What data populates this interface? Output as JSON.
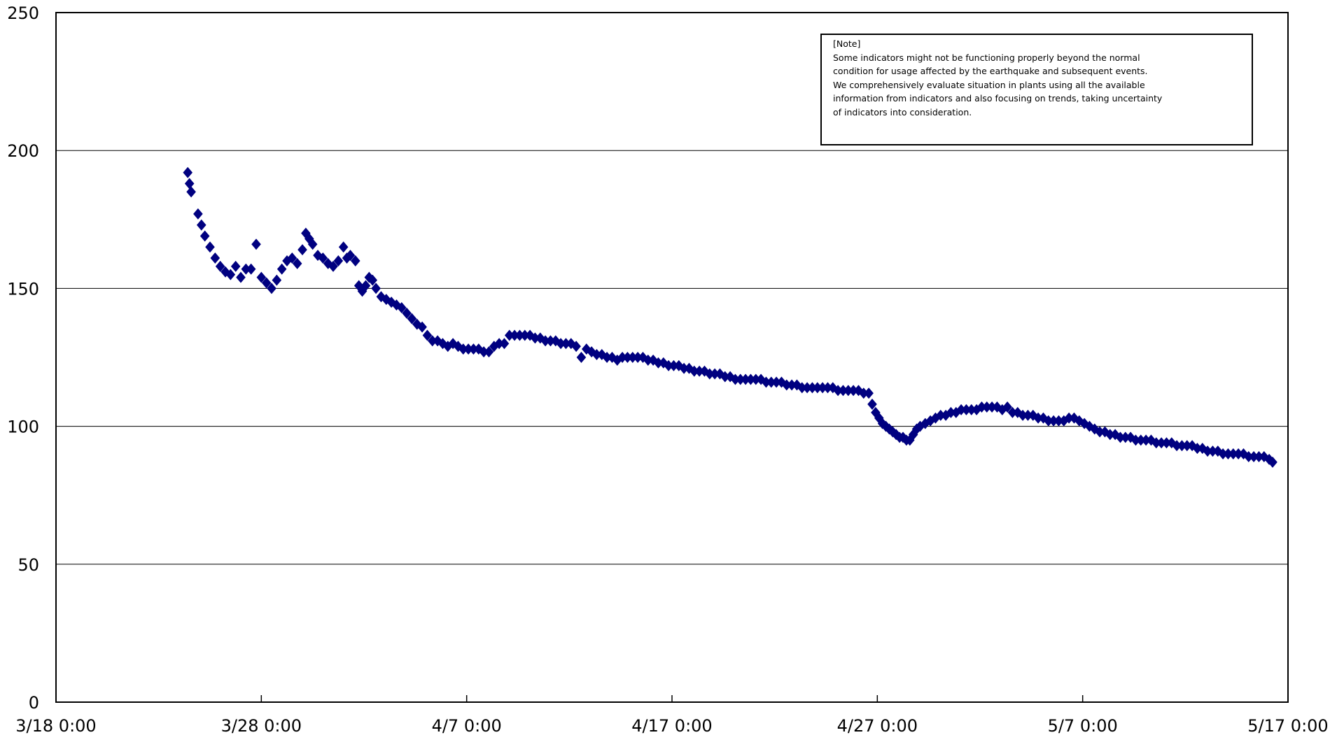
{
  "chart_data": {
    "type": "scatter",
    "marker": "diamond",
    "marker_color": "#000080",
    "title": "",
    "xlabel": "",
    "ylabel": "",
    "ylim": [
      0,
      250
    ],
    "yticks": [
      0,
      50,
      100,
      150,
      200,
      250
    ],
    "xlim": [
      "3/18 0:00",
      "5/17 0:00"
    ],
    "xticks": [
      "3/18 0:00",
      "3/28 0:00",
      "4/7 0:00",
      "4/17 0:00",
      "4/27 0:00",
      "5/7 0:00",
      "5/17 0:00"
    ],
    "grid": "horizontal",
    "legend": "none",
    "points": [
      {
        "x": "3/24 10:00",
        "y": 192
      },
      {
        "x": "3/24 12:00",
        "y": 188
      },
      {
        "x": "3/24 14:00",
        "y": 185
      },
      {
        "x": "3/24 22:00",
        "y": 177
      },
      {
        "x": "3/25 2:00",
        "y": 173
      },
      {
        "x": "3/25 6:00",
        "y": 169
      },
      {
        "x": "3/25 12:00",
        "y": 165
      },
      {
        "x": "3/25 18:00",
        "y": 161
      },
      {
        "x": "3/26 0:00",
        "y": 158
      },
      {
        "x": "3/26 6:00",
        "y": 156
      },
      {
        "x": "3/26 12:00",
        "y": 155
      },
      {
        "x": "3/26 18:00",
        "y": 158
      },
      {
        "x": "3/27 0:00",
        "y": 154
      },
      {
        "x": "3/27 6:00",
        "y": 157
      },
      {
        "x": "3/27 12:00",
        "y": 157
      },
      {
        "x": "3/27 18:00",
        "y": 166
      },
      {
        "x": "3/28 0:00",
        "y": 154
      },
      {
        "x": "3/28 6:00",
        "y": 152
      },
      {
        "x": "3/28 12:00",
        "y": 150
      },
      {
        "x": "3/28 18:00",
        "y": 153
      },
      {
        "x": "3/29 0:00",
        "y": 157
      },
      {
        "x": "3/29 6:00",
        "y": 160
      },
      {
        "x": "3/29 12:00",
        "y": 161
      },
      {
        "x": "3/29 18:00",
        "y": 159
      },
      {
        "x": "3/30 0:00",
        "y": 164
      },
      {
        "x": "3/30 4:00",
        "y": 170
      },
      {
        "x": "3/30 8:00",
        "y": 168
      },
      {
        "x": "3/30 12:00",
        "y": 166
      },
      {
        "x": "3/30 18:00",
        "y": 162
      },
      {
        "x": "3/31 0:00",
        "y": 161
      },
      {
        "x": "3/31 6:00",
        "y": 159
      },
      {
        "x": "3/31 12:00",
        "y": 158
      },
      {
        "x": "3/31 18:00",
        "y": 160
      },
      {
        "x": "4/1 0:00",
        "y": 165
      },
      {
        "x": "4/1 4:00",
        "y": 161
      },
      {
        "x": "4/1 8:00",
        "y": 162
      },
      {
        "x": "4/1 14:00",
        "y": 160
      },
      {
        "x": "4/1 18:00",
        "y": 151
      },
      {
        "x": "4/1 22:00",
        "y": 149
      },
      {
        "x": "4/2 2:00",
        "y": 151
      },
      {
        "x": "4/2 6:00",
        "y": 154
      },
      {
        "x": "4/2 10:00",
        "y": 153
      },
      {
        "x": "4/2 14:00",
        "y": 150
      },
      {
        "x": "4/2 20:00",
        "y": 147
      },
      {
        "x": "4/3 2:00",
        "y": 146
      },
      {
        "x": "4/3 8:00",
        "y": 145
      },
      {
        "x": "4/3 14:00",
        "y": 144
      },
      {
        "x": "4/3 20:00",
        "y": 143
      },
      {
        "x": "4/4 2:00",
        "y": 141
      },
      {
        "x": "4/4 8:00",
        "y": 139
      },
      {
        "x": "4/4 14:00",
        "y": 137
      },
      {
        "x": "4/4 20:00",
        "y": 136
      },
      {
        "x": "4/5 2:00",
        "y": 133
      },
      {
        "x": "4/5 8:00",
        "y": 131
      },
      {
        "x": "4/5 14:00",
        "y": 131
      },
      {
        "x": "4/5 20:00",
        "y": 130
      },
      {
        "x": "4/6 2:00",
        "y": 129
      },
      {
        "x": "4/6 8:00",
        "y": 130
      },
      {
        "x": "4/6 14:00",
        "y": 129
      },
      {
        "x": "4/6 20:00",
        "y": 128
      },
      {
        "x": "4/7 2:00",
        "y": 128
      },
      {
        "x": "4/7 8:00",
        "y": 128
      },
      {
        "x": "4/7 14:00",
        "y": 128
      },
      {
        "x": "4/7 20:00",
        "y": 127
      },
      {
        "x": "4/8 2:00",
        "y": 127
      },
      {
        "x": "4/8 8:00",
        "y": 129
      },
      {
        "x": "4/8 14:00",
        "y": 130
      },
      {
        "x": "4/8 20:00",
        "y": 130
      },
      {
        "x": "4/9 2:00",
        "y": 133
      },
      {
        "x": "4/9 8:00",
        "y": 133
      },
      {
        "x": "4/9 14:00",
        "y": 133
      },
      {
        "x": "4/9 20:00",
        "y": 133
      },
      {
        "x": "4/10 2:00",
        "y": 133
      },
      {
        "x": "4/10 8:00",
        "y": 132
      },
      {
        "x": "4/10 14:00",
        "y": 132
      },
      {
        "x": "4/10 20:00",
        "y": 131
      },
      {
        "x": "4/11 2:00",
        "y": 131
      },
      {
        "x": "4/11 8:00",
        "y": 131
      },
      {
        "x": "4/11 14:00",
        "y": 130
      },
      {
        "x": "4/11 20:00",
        "y": 130
      },
      {
        "x": "4/12 2:00",
        "y": 130
      },
      {
        "x": "4/12 8:00",
        "y": 129
      },
      {
        "x": "4/12 14:00",
        "y": 125
      },
      {
        "x": "4/12 20:00",
        "y": 128
      },
      {
        "x": "4/13 2:00",
        "y": 127
      },
      {
        "x": "4/13 8:00",
        "y": 126
      },
      {
        "x": "4/13 14:00",
        "y": 126
      },
      {
        "x": "4/13 20:00",
        "y": 125
      },
      {
        "x": "4/14 2:00",
        "y": 125
      },
      {
        "x": "4/14 8:00",
        "y": 124
      },
      {
        "x": "4/14 14:00",
        "y": 125
      },
      {
        "x": "4/14 20:00",
        "y": 125
      },
      {
        "x": "4/15 2:00",
        "y": 125
      },
      {
        "x": "4/15 8:00",
        "y": 125
      },
      {
        "x": "4/15 14:00",
        "y": 125
      },
      {
        "x": "4/15 20:00",
        "y": 124
      },
      {
        "x": "4/16 2:00",
        "y": 124
      },
      {
        "x": "4/16 8:00",
        "y": 123
      },
      {
        "x": "4/16 14:00",
        "y": 123
      },
      {
        "x": "4/16 20:00",
        "y": 122
      },
      {
        "x": "4/17 2:00",
        "y": 122
      },
      {
        "x": "4/17 8:00",
        "y": 122
      },
      {
        "x": "4/17 14:00",
        "y": 121
      },
      {
        "x": "4/17 20:00",
        "y": 121
      },
      {
        "x": "4/18 2:00",
        "y": 120
      },
      {
        "x": "4/18 8:00",
        "y": 120
      },
      {
        "x": "4/18 14:00",
        "y": 120
      },
      {
        "x": "4/18 20:00",
        "y": 119
      },
      {
        "x": "4/19 2:00",
        "y": 119
      },
      {
        "x": "4/19 8:00",
        "y": 119
      },
      {
        "x": "4/19 14:00",
        "y": 118
      },
      {
        "x": "4/19 20:00",
        "y": 118
      },
      {
        "x": "4/20 2:00",
        "y": 117
      },
      {
        "x": "4/20 8:00",
        "y": 117
      },
      {
        "x": "4/20 14:00",
        "y": 117
      },
      {
        "x": "4/20 20:00",
        "y": 117
      },
      {
        "x": "4/21 2:00",
        "y": 117
      },
      {
        "x": "4/21 8:00",
        "y": 117
      },
      {
        "x": "4/21 14:00",
        "y": 116
      },
      {
        "x": "4/21 20:00",
        "y": 116
      },
      {
        "x": "4/22 2:00",
        "y": 116
      },
      {
        "x": "4/22 8:00",
        "y": 116
      },
      {
        "x": "4/22 14:00",
        "y": 115
      },
      {
        "x": "4/22 20:00",
        "y": 115
      },
      {
        "x": "4/23 2:00",
        "y": 115
      },
      {
        "x": "4/23 8:00",
        "y": 114
      },
      {
        "x": "4/23 14:00",
        "y": 114
      },
      {
        "x": "4/23 20:00",
        "y": 114
      },
      {
        "x": "4/24 2:00",
        "y": 114
      },
      {
        "x": "4/24 8:00",
        "y": 114
      },
      {
        "x": "4/24 14:00",
        "y": 114
      },
      {
        "x": "4/24 20:00",
        "y": 114
      },
      {
        "x": "4/25 2:00",
        "y": 113
      },
      {
        "x": "4/25 8:00",
        "y": 113
      },
      {
        "x": "4/25 14:00",
        "y": 113
      },
      {
        "x": "4/25 20:00",
        "y": 113
      },
      {
        "x": "4/26 2:00",
        "y": 113
      },
      {
        "x": "4/26 8:00",
        "y": 112
      },
      {
        "x": "4/26 14:00",
        "y": 112
      },
      {
        "x": "4/26 18:00",
        "y": 108
      },
      {
        "x": "4/26 22:00",
        "y": 105
      },
      {
        "x": "4/27 2:00",
        "y": 103
      },
      {
        "x": "4/27 6:00",
        "y": 101
      },
      {
        "x": "4/27 10:00",
        "y": 100
      },
      {
        "x": "4/27 14:00",
        "y": 99
      },
      {
        "x": "4/27 18:00",
        "y": 98
      },
      {
        "x": "4/27 22:00",
        "y": 97
      },
      {
        "x": "4/28 2:00",
        "y": 96
      },
      {
        "x": "4/28 6:00",
        "y": 96
      },
      {
        "x": "4/28 10:00",
        "y": 95
      },
      {
        "x": "4/28 14:00",
        "y": 95
      },
      {
        "x": "4/28 18:00",
        "y": 97
      },
      {
        "x": "4/28 22:00",
        "y": 99
      },
      {
        "x": "4/29 2:00",
        "y": 100
      },
      {
        "x": "4/29 8:00",
        "y": 101
      },
      {
        "x": "4/29 14:00",
        "y": 102
      },
      {
        "x": "4/29 20:00",
        "y": 103
      },
      {
        "x": "4/30 2:00",
        "y": 104
      },
      {
        "x": "4/30 8:00",
        "y": 104
      },
      {
        "x": "4/30 14:00",
        "y": 105
      },
      {
        "x": "4/30 20:00",
        "y": 105
      },
      {
        "x": "5/1 2:00",
        "y": 106
      },
      {
        "x": "5/1 8:00",
        "y": 106
      },
      {
        "x": "5/1 14:00",
        "y": 106
      },
      {
        "x": "5/1 20:00",
        "y": 106
      },
      {
        "x": "5/2 2:00",
        "y": 107
      },
      {
        "x": "5/2 8:00",
        "y": 107
      },
      {
        "x": "5/2 14:00",
        "y": 107
      },
      {
        "x": "5/2 20:00",
        "y": 107
      },
      {
        "x": "5/3 2:00",
        "y": 106
      },
      {
        "x": "5/3 8:00",
        "y": 107
      },
      {
        "x": "5/3 14:00",
        "y": 105
      },
      {
        "x": "5/3 20:00",
        "y": 105
      },
      {
        "x": "5/4 2:00",
        "y": 104
      },
      {
        "x": "5/4 8:00",
        "y": 104
      },
      {
        "x": "5/4 14:00",
        "y": 104
      },
      {
        "x": "5/4 20:00",
        "y": 103
      },
      {
        "x": "5/5 2:00",
        "y": 103
      },
      {
        "x": "5/5 8:00",
        "y": 102
      },
      {
        "x": "5/5 14:00",
        "y": 102
      },
      {
        "x": "5/5 20:00",
        "y": 102
      },
      {
        "x": "5/6 2:00",
        "y": 102
      },
      {
        "x": "5/6 8:00",
        "y": 103
      },
      {
        "x": "5/6 14:00",
        "y": 103
      },
      {
        "x": "5/6 20:00",
        "y": 102
      },
      {
        "x": "5/7 2:00",
        "y": 101
      },
      {
        "x": "5/7 8:00",
        "y": 100
      },
      {
        "x": "5/7 14:00",
        "y": 99
      },
      {
        "x": "5/7 20:00",
        "y": 98
      },
      {
        "x": "5/8 2:00",
        "y": 98
      },
      {
        "x": "5/8 8:00",
        "y": 97
      },
      {
        "x": "5/8 14:00",
        "y": 97
      },
      {
        "x": "5/8 20:00",
        "y": 96
      },
      {
        "x": "5/9 2:00",
        "y": 96
      },
      {
        "x": "5/9 8:00",
        "y": 96
      },
      {
        "x": "5/9 14:00",
        "y": 95
      },
      {
        "x": "5/9 20:00",
        "y": 95
      },
      {
        "x": "5/10 2:00",
        "y": 95
      },
      {
        "x": "5/10 8:00",
        "y": 95
      },
      {
        "x": "5/10 14:00",
        "y": 94
      },
      {
        "x": "5/10 20:00",
        "y": 94
      },
      {
        "x": "5/11 2:00",
        "y": 94
      },
      {
        "x": "5/11 8:00",
        "y": 94
      },
      {
        "x": "5/11 14:00",
        "y": 93
      },
      {
        "x": "5/11 20:00",
        "y": 93
      },
      {
        "x": "5/12 2:00",
        "y": 93
      },
      {
        "x": "5/12 8:00",
        "y": 93
      },
      {
        "x": "5/12 14:00",
        "y": 92
      },
      {
        "x": "5/12 20:00",
        "y": 92
      },
      {
        "x": "5/13 2:00",
        "y": 91
      },
      {
        "x": "5/13 8:00",
        "y": 91
      },
      {
        "x": "5/13 14:00",
        "y": 91
      },
      {
        "x": "5/13 20:00",
        "y": 90
      },
      {
        "x": "5/14 2:00",
        "y": 90
      },
      {
        "x": "5/14 8:00",
        "y": 90
      },
      {
        "x": "5/14 14:00",
        "y": 90
      },
      {
        "x": "5/14 20:00",
        "y": 90
      },
      {
        "x": "5/15 2:00",
        "y": 89
      },
      {
        "x": "5/15 8:00",
        "y": 89
      },
      {
        "x": "5/15 14:00",
        "y": 89
      },
      {
        "x": "5/15 20:00",
        "y": 89
      },
      {
        "x": "5/16 2:00",
        "y": 88
      },
      {
        "x": "5/16 6:00",
        "y": 87
      }
    ]
  },
  "note": {
    "lines": [
      "[Note]",
      "Some indicators might not be functioning properly beyond the normal",
      "condition for usage affected by the earthquake and subsequent events.",
      "We comprehensively evaluate situation in plants using all the available",
      "information from indicators and also focusing on trends, taking uncertainty",
      "of indicators into consideration."
    ]
  }
}
